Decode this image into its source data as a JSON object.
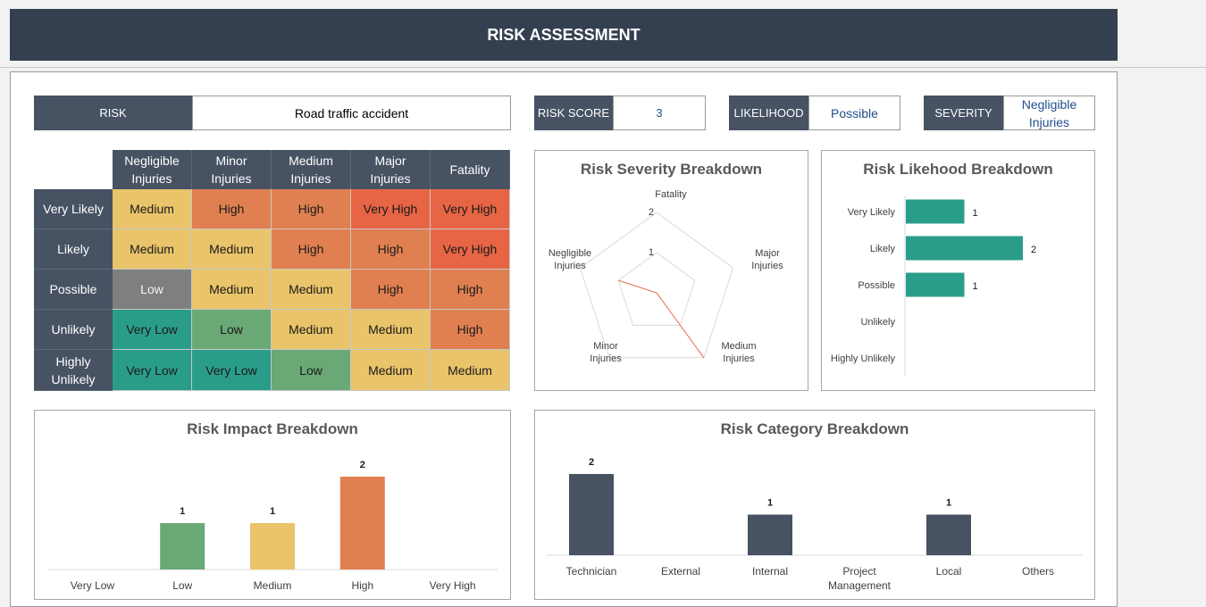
{
  "header": {
    "title": "RISK ASSESSMENT"
  },
  "info": {
    "risk_label": "RISK",
    "risk_value": "Road traffic accident",
    "score_label": "RISK SCORE",
    "score_value": "3",
    "likelihood_label": "LIKELIHOOD",
    "likelihood_value": "Possible",
    "severity_label": "SEVERITY",
    "severity_value_line1": "Negligible",
    "severity_value_line2": "Injuries"
  },
  "matrix": {
    "columns": [
      {
        "l1": "Negligible",
        "l2": "Injuries"
      },
      {
        "l1": "Minor",
        "l2": "Injuries"
      },
      {
        "l1": "Medium",
        "l2": "Injuries"
      },
      {
        "l1": "Major",
        "l2": "Injuries"
      },
      {
        "l1": "Fatality",
        "l2": ""
      }
    ],
    "rows": [
      {
        "l1": "Very Likely",
        "l2": "",
        "cells": [
          "Medium",
          "High",
          "High",
          "Very High",
          "Very High"
        ]
      },
      {
        "l1": "Likely",
        "l2": "",
        "cells": [
          "Medium",
          "Medium",
          "High",
          "High",
          "Very High"
        ]
      },
      {
        "l1": "Possible",
        "l2": "",
        "cells": [
          "Low",
          "Medium",
          "Medium",
          "High",
          "High"
        ]
      },
      {
        "l1": "Unlikely",
        "l2": "",
        "cells": [
          "Very Low",
          "Low",
          "Medium",
          "Medium",
          "High"
        ]
      },
      {
        "l1": "Highly",
        "l2": "Unlikely",
        "cells": [
          "Very Low",
          "Very Low",
          "Low",
          "Medium",
          "Medium"
        ]
      }
    ],
    "level_colors": {
      "Very Low": "#2a9d8a",
      "Low": "#6aa876",
      "Medium": "#e9c46a",
      "High": "#e08050",
      "Very High": "#e76545"
    },
    "highlight_color": "#7f7f7f",
    "highlight_cell": "Possible / Negligible Injuries"
  },
  "severity_chart": {
    "title": "Risk Severity Breakdown",
    "axes": [
      {
        "l1": "Fatality",
        "l2": ""
      },
      {
        "l1": "Major",
        "l2": "Injuries"
      },
      {
        "l1": "Medium",
        "l2": "Injuries"
      },
      {
        "l1": "Minor",
        "l2": "Injuries"
      },
      {
        "l1": "Negligible",
        "l2": "Injuries"
      }
    ],
    "ticks": [
      "2",
      "1"
    ],
    "color": "#e76a45"
  },
  "likelihood_chart": {
    "title": "Risk Likehood Breakdown",
    "color": "#2a9d8a"
  },
  "impact_chart": {
    "title": "Risk Impact Breakdown",
    "colors": [
      "#6aa876",
      "#6aa876",
      "#e9c46a",
      "#e08050",
      "#e76545"
    ]
  },
  "category_chart": {
    "title": "Risk Category Breakdown",
    "color": "#475263"
  },
  "chart_data": [
    {
      "type": "radar",
      "title": "Risk Severity Breakdown",
      "categories": [
        "Fatality",
        "Major Injuries",
        "Medium Injuries",
        "Minor Injuries",
        "Negligible Injuries"
      ],
      "values": [
        0,
        0,
        2,
        0,
        1
      ],
      "rmax": 2
    },
    {
      "type": "bar",
      "orientation": "horizontal",
      "title": "Risk Likehood Breakdown",
      "categories": [
        "Very Likely",
        "Likely",
        "Possible",
        "Unlikely",
        "Highly Unlikely"
      ],
      "values": [
        1,
        2,
        1,
        0,
        0
      ]
    },
    {
      "type": "bar",
      "title": "Risk Impact Breakdown",
      "categories": [
        "Very Low",
        "Low",
        "Medium",
        "High",
        "Very High"
      ],
      "values": [
        0,
        1,
        1,
        2,
        0
      ]
    },
    {
      "type": "bar",
      "title": "Risk Category Breakdown",
      "categories": [
        "Technician",
        "External",
        "Internal",
        "Project Management",
        "Local",
        "Others"
      ],
      "labels": [
        [
          "Technician"
        ],
        [
          "External"
        ],
        [
          "Internal"
        ],
        [
          "Project",
          "Management"
        ],
        [
          "Local"
        ],
        [
          "Others"
        ]
      ],
      "values": [
        2,
        0,
        1,
        0,
        1,
        0
      ]
    }
  ]
}
